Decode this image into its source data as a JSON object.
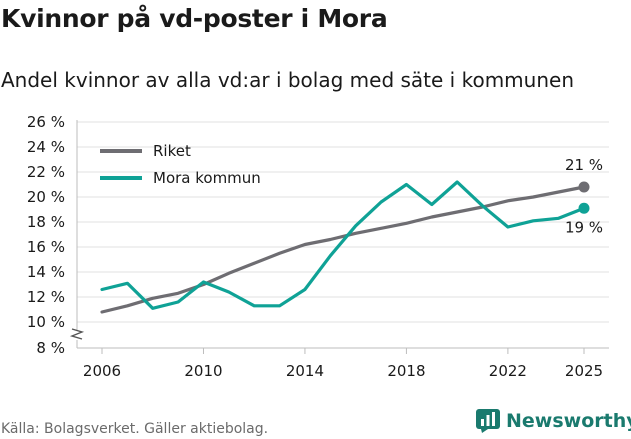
{
  "title": "Kvinnor på vd-poster i Mora",
  "chart_data": {
    "type": "line",
    "title": "Andel kvinnor av alla vd:ar i bolag med säte i kommunen",
    "xlabel": "",
    "ylabel": "",
    "ylim": [
      8,
      26
    ],
    "axis_break": true,
    "yticks": [
      8,
      10,
      12,
      14,
      16,
      18,
      20,
      22,
      24,
      26
    ],
    "ytick_labels": [
      "8 %",
      "10 %",
      "12 %",
      "14 %",
      "16 %",
      "18 %",
      "20 %",
      "22 %",
      "24 %",
      "26 %"
    ],
    "xticks": [
      2006,
      2010,
      2014,
      2018,
      2022,
      2025
    ],
    "xtick_labels": [
      "2006",
      "2010",
      "2014",
      "2018",
      "2022",
      "2025"
    ],
    "grid": true,
    "legend_position": "top-left",
    "x": [
      2006,
      2007,
      2008,
      2009,
      2010,
      2011,
      2012,
      2013,
      2014,
      2015,
      2016,
      2017,
      2018,
      2019,
      2020,
      2021,
      2022,
      2023,
      2024,
      2025
    ],
    "series": [
      {
        "name": "Riket",
        "color": "#6e6d72",
        "values": [
          10.8,
          11.3,
          11.9,
          12.3,
          13.0,
          13.9,
          14.7,
          15.5,
          16.2,
          16.6,
          17.1,
          17.5,
          17.9,
          18.4,
          18.8,
          19.2,
          19.7,
          20.0,
          20.4,
          20.8
        ],
        "end_label": "21 %"
      },
      {
        "name": "Mora kommun",
        "color": "#0fa296",
        "values": [
          12.6,
          13.1,
          11.1,
          11.6,
          13.2,
          12.4,
          11.3,
          11.3,
          12.6,
          15.3,
          17.7,
          19.6,
          21.0,
          19.4,
          21.2,
          19.3,
          17.6,
          18.1,
          18.3,
          19.1
        ],
        "end_label": "19 %"
      }
    ]
  },
  "footer": {
    "source": "Källa: Bolagsverket. Gäller aktiebolag."
  },
  "brand": {
    "name": "Newsworthy",
    "color": "#1a7a6e"
  }
}
